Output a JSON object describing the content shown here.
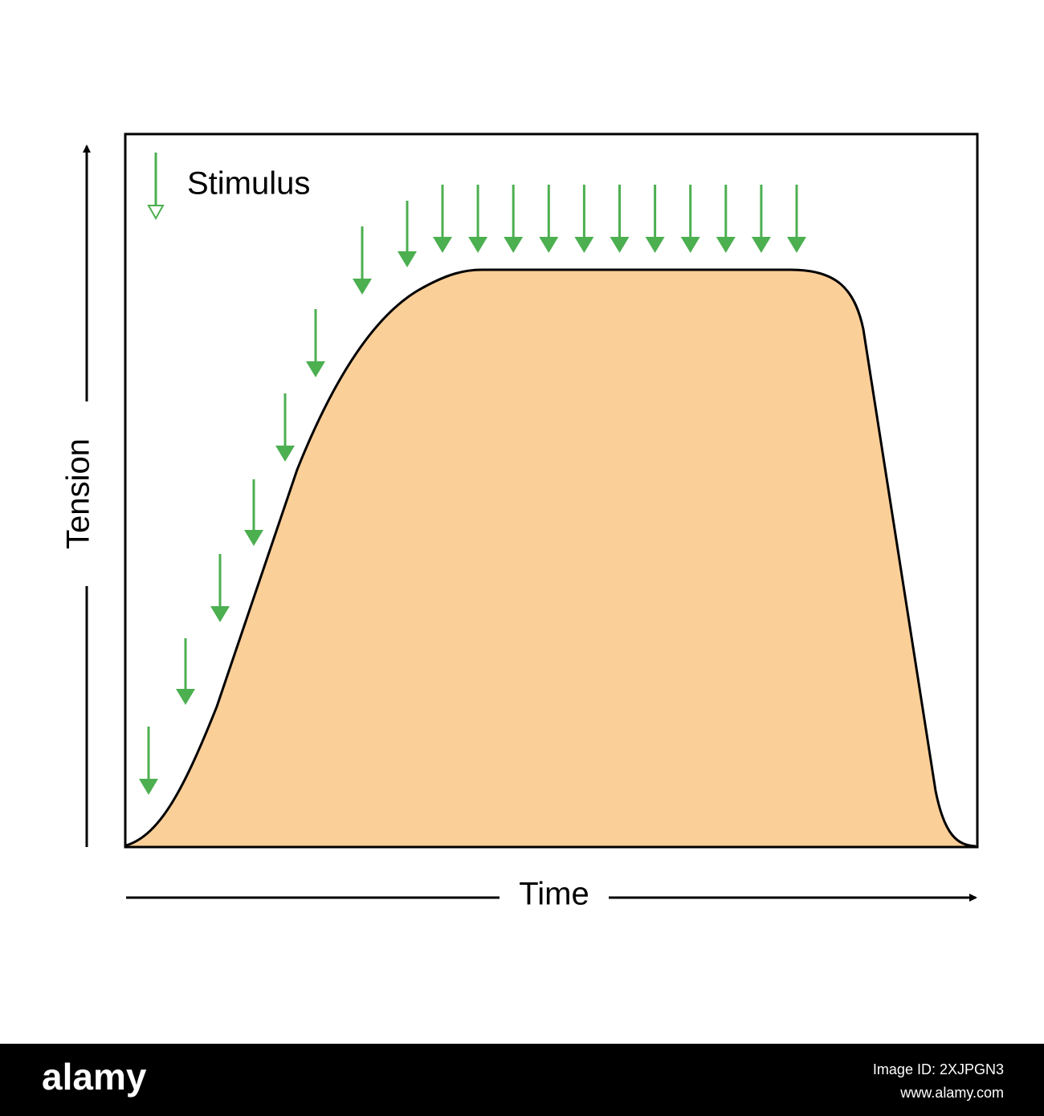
{
  "diagram": {
    "legend": "Stimulus",
    "y_axis_label": "Tension",
    "x_axis_label": "Time"
  },
  "footer": {
    "brand": "alamy",
    "image_id": "Image ID: 2XJPGN3",
    "url": "www.alamy.com"
  }
}
